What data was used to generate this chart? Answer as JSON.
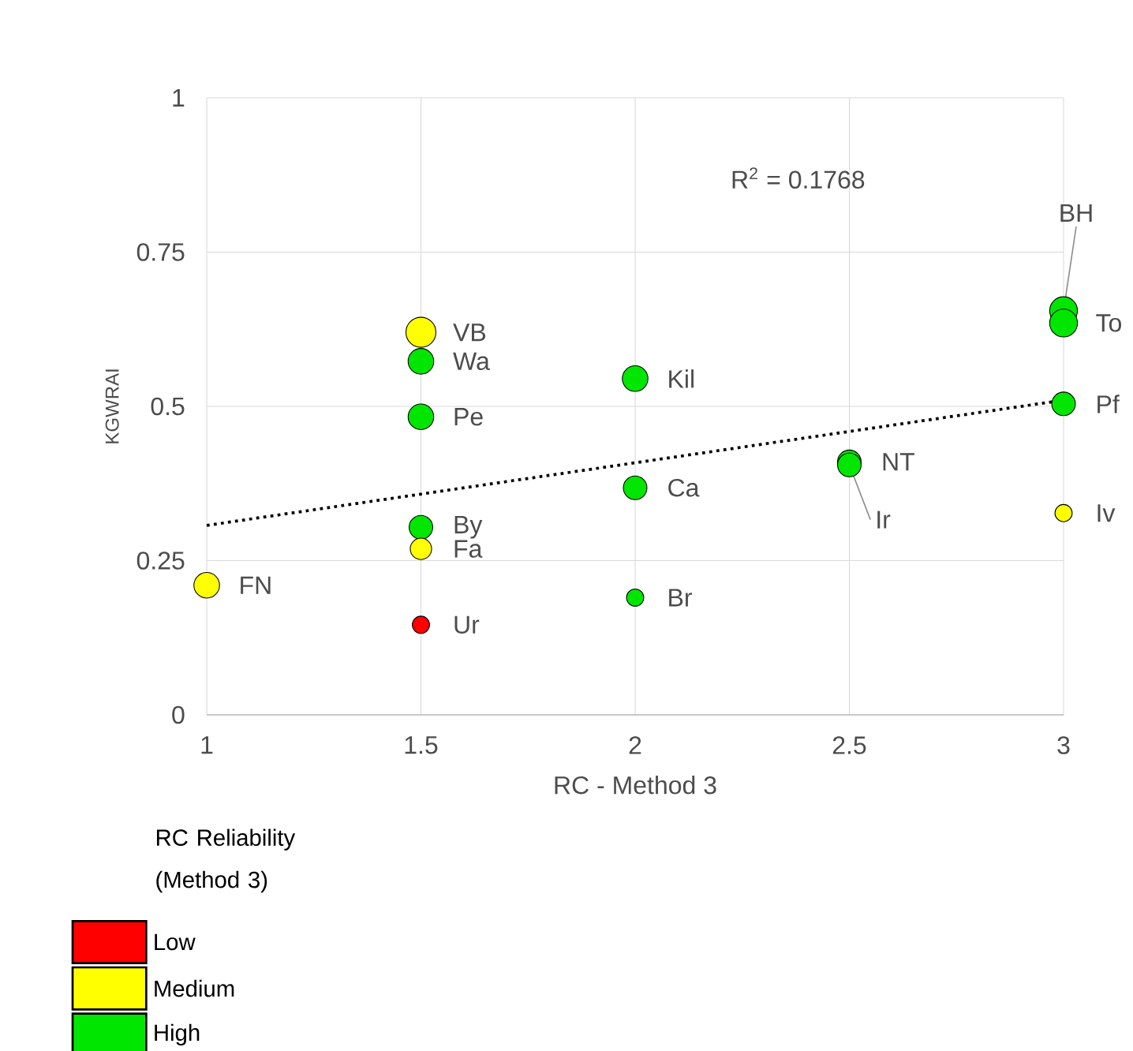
{
  "chart_data": {
    "type": "bubble",
    "xlabel": "RC - Method 3",
    "ylabel": "KGWRAI",
    "legend_title": "RC Reliability (Method 3)",
    "xlim": [
      1,
      3
    ],
    "ylim": [
      0,
      1
    ],
    "xticks": [
      1,
      1.5,
      2,
      2.5,
      3
    ],
    "yticks": [
      0,
      0.25,
      0.5,
      0.75,
      1
    ],
    "grid": true,
    "legend": "bottom left",
    "marker": "circle",
    "series": [
      {
        "name": "Low",
        "color": "#ff0000",
        "x": [
          1.5
        ],
        "values": [
          0.146
        ],
        "sizes": [
          0.33
        ]
      },
      {
        "name": "Medium",
        "color": "#ffff00",
        "x": [
          1,
          1.5,
          1.5,
          3
        ],
        "values": [
          0.21,
          0.62,
          0.269,
          0.327
        ],
        "sizes": [
          0.73,
          1,
          0.51,
          0.33
        ]
      },
      {
        "name": "High",
        "color": "#00e600",
        "x": [
          1.5,
          1.5,
          1.5,
          2,
          2,
          2,
          2.5,
          2.5,
          3,
          3,
          3
        ],
        "values": [
          0.573,
          0.483,
          0.304,
          0.545,
          0.368,
          0.19,
          0.41,
          0.405,
          0.655,
          0.635,
          0.504
        ],
        "sizes": [
          0.73,
          0.73,
          0.62,
          0.73,
          0.62,
          0.33,
          0.62,
          0.62,
          0.86,
          0.86,
          0.62
        ]
      },
      {
        "type": "line",
        "color": "#000000",
        "line_style": "dotted",
        "marker": "none",
        "x": [
          1,
          3
        ],
        "values": [
          0.307,
          0.51
        ]
      }
    ],
    "annotations": [
      "R$^{2}$ = 0.1768",
      {
        "text": "FN",
        "x": 1,
        "y": 0.21
      },
      {
        "text": "VB",
        "x": 1.5,
        "y": 0.62
      },
      {
        "text": "Wa",
        "x": 1.5,
        "y": 0.573
      },
      {
        "text": "Pe",
        "x": 1.5,
        "y": 0.483
      },
      {
        "text": "By",
        "x": 1.5,
        "y": 0.304
      },
      {
        "text": "Fa",
        "x": 1.5,
        "y": 0.269
      },
      {
        "text": "Ur",
        "x": 1.5,
        "y": 0.146
      },
      {
        "text": "Kil",
        "x": 2,
        "y": 0.545
      },
      {
        "text": "Ca",
        "x": 2,
        "y": 0.368
      },
      {
        "text": "Br",
        "x": 2,
        "y": 0.19
      },
      {
        "text": "NT",
        "x": 2.5,
        "y": 0.41
      },
      {
        "text": "Ir",
        "x": 2.5,
        "y": 0.405
      },
      {
        "text": "BH",
        "x": 3,
        "y": 0.655
      },
      {
        "text": "To",
        "x": 3,
        "y": 0.635
      },
      {
        "text": "Pf",
        "x": 3,
        "y": 0.504
      },
      {
        "text": "Iv",
        "x": 3,
        "y": 0.327
      }
    ]
  }
}
